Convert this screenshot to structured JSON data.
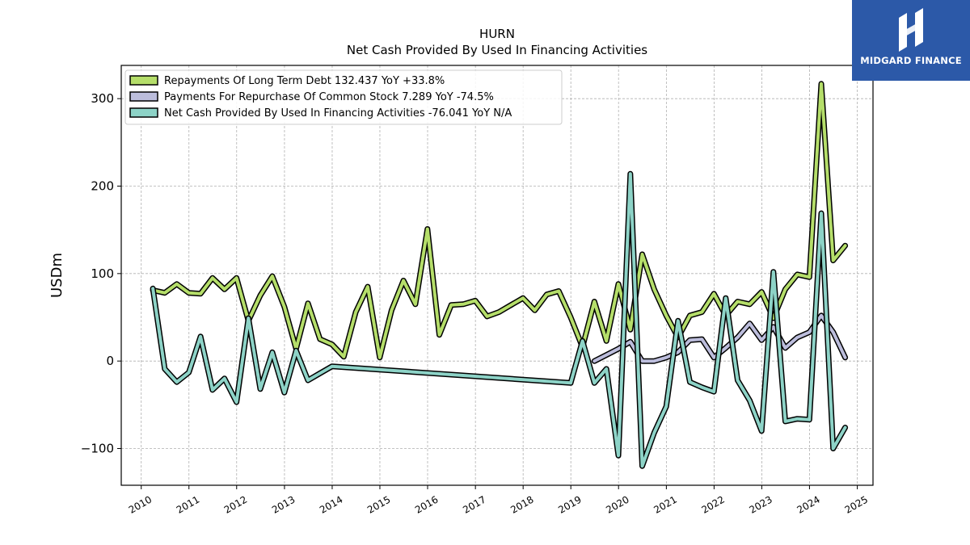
{
  "chart_data": {
    "type": "line",
    "title": "HURN",
    "subtitle": "Net Cash Provided By Used In Financing Activities",
    "ylabel": "USDm",
    "xlabel": "",
    "xlim": [
      "2009-08-01",
      "2025-05-01"
    ],
    "ylim": [
      -142,
      338
    ],
    "x_ticks": [
      "2010",
      "2011",
      "2012",
      "2013",
      "2014",
      "2015",
      "2016",
      "2017",
      "2018",
      "2019",
      "2020",
      "2021",
      "2022",
      "2023",
      "2024",
      "2025"
    ],
    "y_ticks": [
      -100,
      0,
      100,
      200,
      300
    ],
    "y_tick_labels": [
      "−100",
      "0",
      "100",
      "200",
      "300"
    ],
    "grid": true,
    "legend_position": "top-left",
    "series": [
      {
        "name": "Repayments Of Long Term Debt",
        "legend_label": "Repayments Of Long Term Debt  132.437 YoY +33.8%",
        "color": "#b5de6a",
        "points": [
          [
            "2010-03-31",
            81
          ],
          [
            "2010-06-30",
            78
          ],
          [
            "2010-09-30",
            88
          ],
          [
            "2010-12-31",
            78
          ],
          [
            "2011-03-31",
            77
          ],
          [
            "2011-06-30",
            95
          ],
          [
            "2011-09-30",
            82
          ],
          [
            "2011-12-31",
            95
          ],
          [
            "2012-03-31",
            46
          ],
          [
            "2012-06-30",
            75
          ],
          [
            "2012-09-30",
            97
          ],
          [
            "2012-12-31",
            62
          ],
          [
            "2013-03-31",
            14
          ],
          [
            "2013-06-30",
            66
          ],
          [
            "2013-09-30",
            25
          ],
          [
            "2013-12-31",
            19
          ],
          [
            "2014-03-31",
            5
          ],
          [
            "2014-06-30",
            56
          ],
          [
            "2014-09-30",
            85
          ],
          [
            "2014-12-31",
            4
          ],
          [
            "2015-03-31",
            58
          ],
          [
            "2015-06-30",
            92
          ],
          [
            "2015-09-30",
            65
          ],
          [
            "2015-12-31",
            151
          ],
          [
            "2016-03-31",
            30
          ],
          [
            "2016-06-30",
            64
          ],
          [
            "2016-09-30",
            65
          ],
          [
            "2016-12-31",
            69
          ],
          [
            "2017-03-31",
            51
          ],
          [
            "2017-06-30",
            56
          ],
          [
            "2017-09-30",
            64
          ],
          [
            "2017-12-31",
            72
          ],
          [
            "2018-03-31",
            58
          ],
          [
            "2018-06-30",
            76
          ],
          [
            "2018-09-30",
            80
          ],
          [
            "2018-12-31",
            50
          ],
          [
            "2019-03-31",
            16
          ],
          [
            "2019-06-30",
            68
          ],
          [
            "2019-09-30",
            23
          ],
          [
            "2019-12-31",
            88
          ],
          [
            "2020-03-31",
            36
          ],
          [
            "2020-06-30",
            122
          ],
          [
            "2020-09-30",
            82
          ],
          [
            "2020-12-31",
            52
          ],
          [
            "2021-03-31",
            27
          ],
          [
            "2021-06-30",
            52
          ],
          [
            "2021-09-30",
            56
          ],
          [
            "2021-12-31",
            77
          ],
          [
            "2022-03-31",
            52
          ],
          [
            "2022-06-30",
            68
          ],
          [
            "2022-09-30",
            65
          ],
          [
            "2022-12-31",
            79
          ],
          [
            "2023-03-31",
            49
          ],
          [
            "2023-06-30",
            82
          ],
          [
            "2023-09-30",
            99
          ],
          [
            "2023-12-31",
            96
          ],
          [
            "2024-03-31",
            317
          ],
          [
            "2024-06-30",
            115
          ],
          [
            "2024-09-30",
            132
          ]
        ]
      },
      {
        "name": "Payments For Repurchase Of Common Stock",
        "legend_label": "Payments For Repurchase Of Common Stock  7.289 YoY -74.5%",
        "color": "#bcbddc",
        "points": [
          [
            "2019-06-30",
            0
          ],
          [
            "2019-09-30",
            7
          ],
          [
            "2019-12-31",
            14
          ],
          [
            "2020-03-31",
            22
          ],
          [
            "2020-06-30",
            0
          ],
          [
            "2020-09-30",
            0
          ],
          [
            "2020-12-31",
            4
          ],
          [
            "2021-03-31",
            10
          ],
          [
            "2021-06-30",
            24
          ],
          [
            "2021-09-30",
            25
          ],
          [
            "2021-12-31",
            4
          ],
          [
            "2022-03-31",
            15
          ],
          [
            "2022-06-30",
            27
          ],
          [
            "2022-09-30",
            43
          ],
          [
            "2022-12-31",
            24
          ],
          [
            "2023-03-31",
            39
          ],
          [
            "2023-06-30",
            15
          ],
          [
            "2023-09-30",
            27
          ],
          [
            "2023-12-31",
            33
          ],
          [
            "2024-03-31",
            52
          ],
          [
            "2024-06-30",
            33
          ],
          [
            "2024-09-30",
            4
          ]
        ]
      },
      {
        "name": "Net Cash Provided By Used In Financing Activities",
        "legend_label": "Net Cash Provided By Used In Financing Activities  -76.041 YoY N/A",
        "color": "#8dd3c7",
        "points": [
          [
            "2010-03-31",
            83
          ],
          [
            "2010-06-30",
            -9
          ],
          [
            "2010-09-30",
            -24
          ],
          [
            "2010-12-31",
            -13
          ],
          [
            "2011-03-31",
            28
          ],
          [
            "2011-06-30",
            -33
          ],
          [
            "2011-09-30",
            -20
          ],
          [
            "2011-12-31",
            -47
          ],
          [
            "2012-03-31",
            49
          ],
          [
            "2012-06-30",
            -32
          ],
          [
            "2012-09-30",
            10
          ],
          [
            "2012-12-31",
            -36
          ],
          [
            "2013-03-31",
            12
          ],
          [
            "2013-06-30",
            -22
          ],
          [
            "2013-09-30",
            -14
          ],
          [
            "2013-12-31",
            -6
          ],
          [
            "2018-12-31",
            -25
          ],
          [
            "2019-03-31",
            23
          ],
          [
            "2019-06-30",
            -25
          ],
          [
            "2019-09-30",
            -9
          ],
          [
            "2019-12-31",
            -108
          ],
          [
            "2020-03-31",
            214
          ],
          [
            "2020-06-30",
            -120
          ],
          [
            "2020-09-30",
            -82
          ],
          [
            "2020-12-31",
            -52
          ],
          [
            "2021-03-31",
            46
          ],
          [
            "2021-06-30",
            -24
          ],
          [
            "2021-09-30",
            -30
          ],
          [
            "2021-12-31",
            -35
          ],
          [
            "2022-03-31",
            72
          ],
          [
            "2022-06-30",
            -22
          ],
          [
            "2022-09-30",
            -45
          ],
          [
            "2022-12-31",
            -80
          ],
          [
            "2023-03-31",
            102
          ],
          [
            "2023-06-30",
            -69
          ],
          [
            "2023-09-30",
            -66
          ],
          [
            "2023-12-31",
            -67
          ],
          [
            "2024-03-31",
            169
          ],
          [
            "2024-06-30",
            -100
          ],
          [
            "2024-09-30",
            -76
          ]
        ]
      }
    ]
  },
  "logo": {
    "brand_name": "MIDGARD FINANCE",
    "background": "#2c59a8"
  }
}
